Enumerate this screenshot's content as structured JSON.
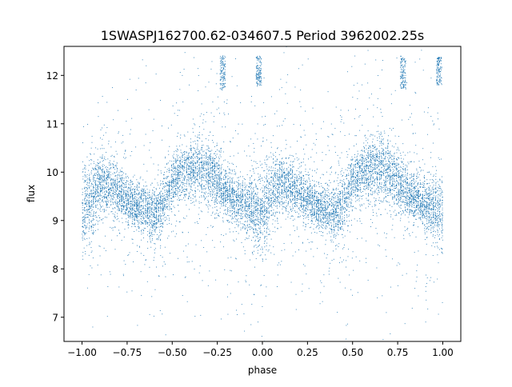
{
  "chart_data": {
    "type": "scatter",
    "title": "1SWASPJ162700.62-034607.5 Period 3962002.25s",
    "xlabel": "phase",
    "ylabel": "flux",
    "xlim": [
      -1.1,
      1.1
    ],
    "ylim": [
      6.5,
      12.6
    ],
    "xticks": [
      {
        "value": -1.0,
        "label": "−1.00"
      },
      {
        "value": -0.75,
        "label": "−0.75"
      },
      {
        "value": -0.5,
        "label": "−0.50"
      },
      {
        "value": -0.25,
        "label": "−0.25"
      },
      {
        "value": 0.0,
        "label": "0.00"
      },
      {
        "value": 0.25,
        "label": "0.25"
      },
      {
        "value": 0.5,
        "label": "0.50"
      },
      {
        "value": 0.75,
        "label": "0.75"
      },
      {
        "value": 1.0,
        "label": "1.00"
      }
    ],
    "yticks": [
      {
        "value": 7,
        "label": "7"
      },
      {
        "value": 8,
        "label": "8"
      },
      {
        "value": 9,
        "label": "9"
      },
      {
        "value": 10,
        "label": "10"
      },
      {
        "value": 11,
        "label": "11"
      },
      {
        "value": 12,
        "label": "12"
      }
    ],
    "grid": false,
    "legend": "none",
    "marker_color": "#1f77b4",
    "phase_range": [
      -1.0,
      1.0
    ],
    "series": [
      {
        "name": "",
        "description_profile": [
          {
            "phase": -1.0,
            "flux_center": 9.2,
            "flux_low": 8.4,
            "flux_high": 10.4
          },
          {
            "phase": -0.95,
            "flux_center": 9.5,
            "flux_low": 8.6,
            "flux_high": 10.5
          },
          {
            "phase": -0.9,
            "flux_center": 9.75,
            "flux_low": 9.1,
            "flux_high": 10.5
          },
          {
            "phase": -0.85,
            "flux_center": 9.7,
            "flux_low": 9.1,
            "flux_high": 10.4
          },
          {
            "phase": -0.8,
            "flux_center": 9.6,
            "flux_low": 9.0,
            "flux_high": 10.2
          },
          {
            "phase": -0.75,
            "flux_center": 9.45,
            "flux_low": 8.9,
            "flux_high": 10.0
          },
          {
            "phase": -0.7,
            "flux_center": 9.3,
            "flux_low": 8.8,
            "flux_high": 9.8
          },
          {
            "phase": -0.65,
            "flux_center": 9.25,
            "flux_low": 8.7,
            "flux_high": 9.8
          },
          {
            "phase": -0.6,
            "flux_center": 9.1,
            "flux_low": 8.4,
            "flux_high": 9.8
          },
          {
            "phase": -0.55,
            "flux_center": 9.35,
            "flux_low": 8.7,
            "flux_high": 10.0
          },
          {
            "phase": -0.5,
            "flux_center": 9.8,
            "flux_low": 9.2,
            "flux_high": 10.4
          },
          {
            "phase": -0.45,
            "flux_center": 10.0,
            "flux_low": 9.3,
            "flux_high": 10.6
          },
          {
            "phase": -0.4,
            "flux_center": 10.05,
            "flux_low": 9.4,
            "flux_high": 10.7
          },
          {
            "phase": -0.35,
            "flux_center": 10.1,
            "flux_low": 9.4,
            "flux_high": 10.8
          },
          {
            "phase": -0.3,
            "flux_center": 10.0,
            "flux_low": 9.3,
            "flux_high": 10.7
          },
          {
            "phase": -0.25,
            "flux_center": 9.8,
            "flux_low": 9.2,
            "flux_high": 10.5
          },
          {
            "phase": -0.2,
            "flux_center": 9.6,
            "flux_low": 9.0,
            "flux_high": 10.2
          },
          {
            "phase": -0.15,
            "flux_center": 9.45,
            "flux_low": 8.9,
            "flux_high": 10.0
          },
          {
            "phase": -0.1,
            "flux_center": 9.35,
            "flux_low": 8.8,
            "flux_high": 9.9
          },
          {
            "phase": -0.05,
            "flux_center": 9.2,
            "flux_low": 8.5,
            "flux_high": 9.9
          },
          {
            "phase": 0.0,
            "flux_center": 9.2,
            "flux_low": 8.4,
            "flux_high": 10.4
          },
          {
            "phase": 0.05,
            "flux_center": 9.5,
            "flux_low": 8.6,
            "flux_high": 10.5
          },
          {
            "phase": 0.1,
            "flux_center": 9.75,
            "flux_low": 9.1,
            "flux_high": 10.5
          },
          {
            "phase": 0.15,
            "flux_center": 9.7,
            "flux_low": 9.1,
            "flux_high": 10.4
          },
          {
            "phase": 0.2,
            "flux_center": 9.6,
            "flux_low": 9.0,
            "flux_high": 10.2
          },
          {
            "phase": 0.25,
            "flux_center": 9.45,
            "flux_low": 8.9,
            "flux_high": 10.0
          },
          {
            "phase": 0.3,
            "flux_center": 9.3,
            "flux_low": 8.8,
            "flux_high": 9.8
          },
          {
            "phase": 0.35,
            "flux_center": 9.25,
            "flux_low": 8.7,
            "flux_high": 9.8
          },
          {
            "phase": 0.4,
            "flux_center": 9.1,
            "flux_low": 8.4,
            "flux_high": 9.8
          },
          {
            "phase": 0.45,
            "flux_center": 9.35,
            "flux_low": 8.7,
            "flux_high": 10.0
          },
          {
            "phase": 0.5,
            "flux_center": 9.8,
            "flux_low": 9.2,
            "flux_high": 10.4
          },
          {
            "phase": 0.55,
            "flux_center": 10.0,
            "flux_low": 9.3,
            "flux_high": 10.6
          },
          {
            "phase": 0.6,
            "flux_center": 10.05,
            "flux_low": 9.4,
            "flux_high": 10.7
          },
          {
            "phase": 0.65,
            "flux_center": 10.1,
            "flux_low": 9.4,
            "flux_high": 10.8
          },
          {
            "phase": 0.7,
            "flux_center": 10.0,
            "flux_low": 9.3,
            "flux_high": 10.7
          },
          {
            "phase": 0.75,
            "flux_center": 9.8,
            "flux_low": 9.2,
            "flux_high": 10.5
          },
          {
            "phase": 0.8,
            "flux_center": 9.6,
            "flux_low": 9.0,
            "flux_high": 10.2
          },
          {
            "phase": 0.85,
            "flux_center": 9.45,
            "flux_low": 8.9,
            "flux_high": 10.0
          },
          {
            "phase": 0.9,
            "flux_center": 9.35,
            "flux_low": 8.8,
            "flux_high": 9.9
          },
          {
            "phase": 0.95,
            "flux_center": 9.2,
            "flux_low": 8.5,
            "flux_high": 9.9
          },
          {
            "phase": 1.0,
            "flux_center": 9.2,
            "flux_low": 8.4,
            "flux_high": 10.4
          }
        ],
        "outlier_clumps": [
          {
            "phase": -0.22,
            "flux_low": 11.7,
            "flux_high": 12.4
          },
          {
            "phase": -0.02,
            "flux_low": 11.8,
            "flux_high": 12.4
          },
          {
            "phase": 0.78,
            "flux_low": 11.7,
            "flux_high": 12.4
          },
          {
            "phase": 0.98,
            "flux_low": 11.8,
            "flux_high": 12.4
          }
        ]
      }
    ]
  }
}
